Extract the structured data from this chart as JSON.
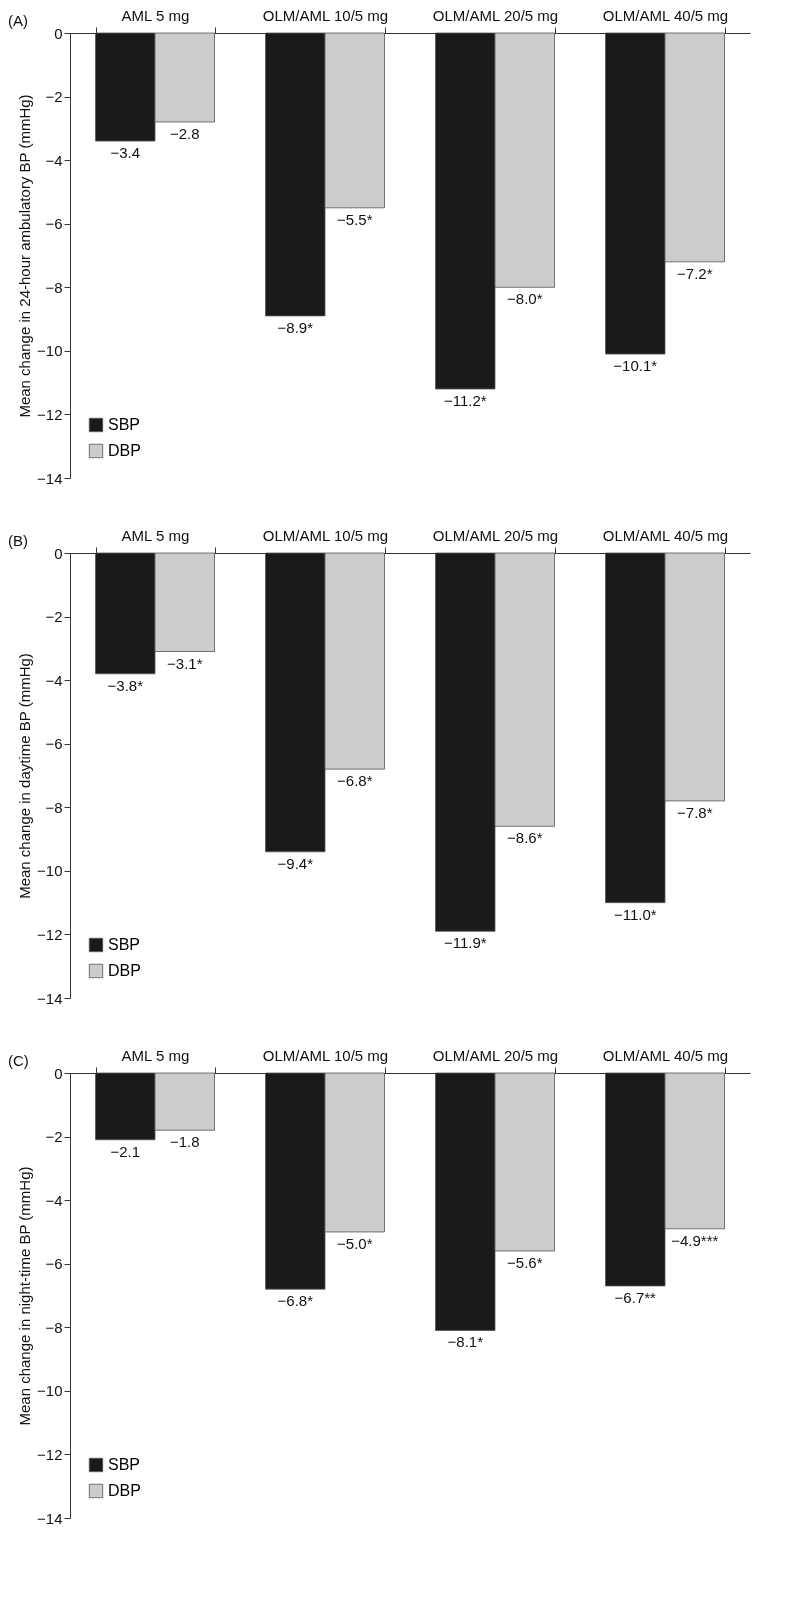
{
  "chart_data": [
    {
      "type": "bar",
      "annotations": [
        "(A)"
      ],
      "ylabel": "Mean change in 24-hour ambulatory BP (mmHg)",
      "categories": [
        "AML 5 mg",
        "OLM/AML 10/5 mg",
        "OLM/AML 20/5 mg",
        "OLM/AML 40/5 mg"
      ],
      "series": [
        {
          "name": "SBP",
          "color": "#1a1a1a",
          "values": [
            -3.4,
            -8.9,
            -11.2,
            -10.1
          ],
          "value_labels": [
            "−3.4",
            "−8.9*",
            "−11.2*",
            "−10.1*"
          ]
        },
        {
          "name": "DBP",
          "color": "#cccccc",
          "values": [
            -2.8,
            -5.5,
            -8.0,
            -7.2
          ],
          "value_labels": [
            "−2.8",
            "−5.5*",
            "−8.0*",
            "−7.2*"
          ]
        }
      ],
      "ylim": [
        -14,
        0
      ],
      "yticks": [
        0,
        -2,
        -4,
        -6,
        -8,
        -10,
        -12,
        -14
      ],
      "legend": "bottom left",
      "grid": false
    },
    {
      "type": "bar",
      "annotations": [
        "(B)"
      ],
      "ylabel": "Mean change in daytime BP (mmHg)",
      "categories": [
        "AML 5 mg",
        "OLM/AML 10/5 mg",
        "OLM/AML 20/5 mg",
        "OLM/AML 40/5 mg"
      ],
      "series": [
        {
          "name": "SBP",
          "color": "#1a1a1a",
          "values": [
            -3.8,
            -9.4,
            -11.9,
            -11.0
          ],
          "value_labels": [
            "−3.8*",
            "−9.4*",
            "−11.9*",
            "−11.0*"
          ]
        },
        {
          "name": "DBP",
          "color": "#cccccc",
          "values": [
            -3.1,
            -6.8,
            -8.6,
            -7.8
          ],
          "value_labels": [
            "−3.1*",
            "−6.8*",
            "−8.6*",
            "−7.8*"
          ]
        }
      ],
      "ylim": [
        -14,
        0
      ],
      "yticks": [
        0,
        -2,
        -4,
        -6,
        -8,
        -10,
        -12,
        -14
      ],
      "legend": "bottom left",
      "grid": false
    },
    {
      "type": "bar",
      "annotations": [
        "(C)"
      ],
      "ylabel": "Mean change in night-time BP (mmHg)",
      "categories": [
        "AML 5 mg",
        "OLM/AML 10/5 mg",
        "OLM/AML 20/5 mg",
        "OLM/AML 40/5 mg"
      ],
      "series": [
        {
          "name": "SBP",
          "color": "#1a1a1a",
          "values": [
            -2.1,
            -6.8,
            -8.1,
            -6.7
          ],
          "value_labels": [
            "−2.1",
            "−6.8*",
            "−8.1*",
            "−6.7**"
          ]
        },
        {
          "name": "DBP",
          "color": "#cccccc",
          "values": [
            -1.8,
            -5.0,
            -5.6,
            -4.9
          ],
          "value_labels": [
            "−1.8",
            "−5.0*",
            "−5.6*",
            "−4.9***"
          ]
        }
      ],
      "ylim": [
        -14,
        0
      ],
      "yticks": [
        0,
        -2,
        -4,
        -6,
        -8,
        -10,
        -12,
        -14
      ],
      "legend": "bottom left",
      "grid": false
    }
  ]
}
